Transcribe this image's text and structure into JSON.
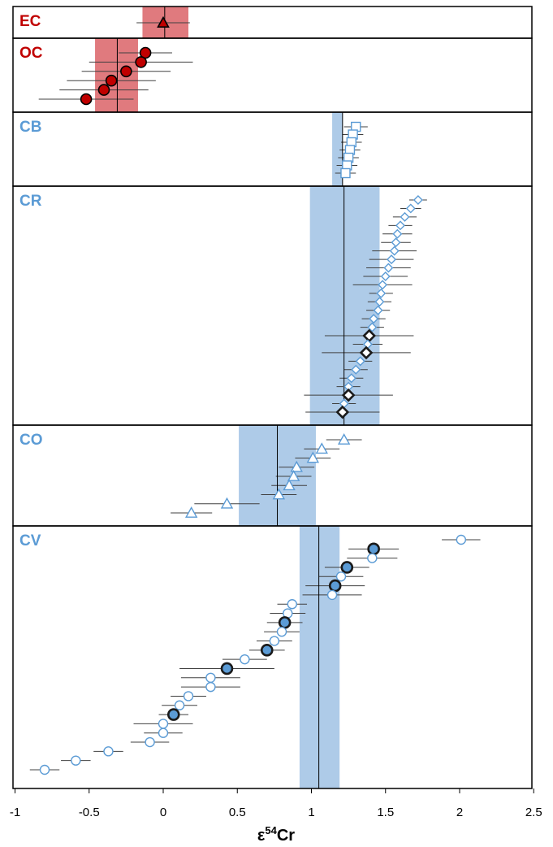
{
  "chart_data": {
    "type": "scatter",
    "xlabel": {
      "prefix": "ε",
      "sup": "54",
      "suffix": "Cr"
    },
    "xlim": [
      -1,
      2.5
    ],
    "xticks": [
      -1,
      -0.5,
      0,
      0.5,
      1,
      1.5,
      2,
      2.5
    ],
    "xtick_labels": [
      "-1",
      "-0.5",
      "0",
      "0.5",
      "1",
      "1.5",
      "2",
      "2.5"
    ],
    "grid": false,
    "colors": {
      "ordinary": "#c00000",
      "carbonaceous": "#5b9bd5",
      "band_red": "#e07a7e",
      "band_blue": "#aecbe8"
    },
    "groups": [
      {
        "label": "EC",
        "color": "#c00000",
        "mean": 0.01,
        "band": [
          -0.14,
          0.17
        ],
        "marker": "triangle",
        "fill": "#c00000",
        "points": [
          {
            "x": 0.0,
            "err": 0.18,
            "highlight": false
          }
        ]
      },
      {
        "label": "OC",
        "color": "#c00000",
        "mean": -0.31,
        "band": [
          -0.46,
          -0.17
        ],
        "marker": "circle",
        "fill": "#c00000",
        "points": [
          {
            "x": -0.12,
            "err": 0.18,
            "highlight": false
          },
          {
            "x": -0.15,
            "err": 0.35,
            "highlight": false
          },
          {
            "x": -0.25,
            "err": 0.3,
            "highlight": false
          },
          {
            "x": -0.35,
            "err": 0.3,
            "highlight": false
          },
          {
            "x": -0.4,
            "err": 0.3,
            "highlight": false
          },
          {
            "x": -0.52,
            "err": 0.32,
            "highlight": false
          }
        ]
      },
      {
        "label": "CB",
        "color": "#5b9bd5",
        "mean": 1.21,
        "band": [
          1.14,
          1.21
        ],
        "marker": "square",
        "fill": "#ffffff",
        "points": [
          {
            "x": 1.3,
            "err": 0.08,
            "highlight": false
          },
          {
            "x": 1.28,
            "err": 0.07,
            "highlight": false
          },
          {
            "x": 1.27,
            "err": 0.07,
            "highlight": false
          },
          {
            "x": 1.26,
            "err": 0.07,
            "highlight": false
          },
          {
            "x": 1.25,
            "err": 0.07,
            "highlight": false
          },
          {
            "x": 1.24,
            "err": 0.07,
            "highlight": false
          },
          {
            "x": 1.23,
            "err": 0.07,
            "highlight": false
          }
        ]
      },
      {
        "label": "CR",
        "color": "#5b9bd5",
        "mean": 1.22,
        "band": [
          0.99,
          1.46
        ],
        "marker": "diamond",
        "fill": "#ffffff",
        "points": [
          {
            "x": 1.72,
            "err": 0.06,
            "highlight": false
          },
          {
            "x": 1.67,
            "err": 0.07,
            "highlight": false
          },
          {
            "x": 1.63,
            "err": 0.08,
            "highlight": false
          },
          {
            "x": 1.6,
            "err": 0.08,
            "highlight": false
          },
          {
            "x": 1.58,
            "err": 0.1,
            "highlight": false
          },
          {
            "x": 1.57,
            "err": 0.1,
            "highlight": false
          },
          {
            "x": 1.56,
            "err": 0.15,
            "highlight": false
          },
          {
            "x": 1.54,
            "err": 0.15,
            "highlight": false
          },
          {
            "x": 1.52,
            "err": 0.15,
            "highlight": false
          },
          {
            "x": 1.5,
            "err": 0.15,
            "highlight": false
          },
          {
            "x": 1.48,
            "err": 0.2,
            "highlight": false
          },
          {
            "x": 1.47,
            "err": 0.08,
            "highlight": false
          },
          {
            "x": 1.46,
            "err": 0.08,
            "highlight": false
          },
          {
            "x": 1.45,
            "err": 0.08,
            "highlight": false
          },
          {
            "x": 1.42,
            "err": 0.08,
            "highlight": false
          },
          {
            "x": 1.41,
            "err": 0.08,
            "highlight": false
          },
          {
            "x": 1.39,
            "err": 0.3,
            "highlight": true
          },
          {
            "x": 1.38,
            "err": 0.1,
            "highlight": false
          },
          {
            "x": 1.37,
            "err": 0.3,
            "highlight": true
          },
          {
            "x": 1.33,
            "err": 0.08,
            "highlight": false
          },
          {
            "x": 1.3,
            "err": 0.08,
            "highlight": false
          },
          {
            "x": 1.27,
            "err": 0.08,
            "highlight": false
          },
          {
            "x": 1.25,
            "err": 0.08,
            "highlight": false
          },
          {
            "x": 1.25,
            "err": 0.3,
            "highlight": true
          },
          {
            "x": 1.22,
            "err": 0.08,
            "highlight": false
          },
          {
            "x": 1.21,
            "err": 0.25,
            "highlight": true
          }
        ]
      },
      {
        "label": "CO",
        "color": "#5b9bd5",
        "mean": 0.77,
        "band": [
          0.51,
          1.03
        ],
        "marker": "triangle",
        "fill": "#ffffff",
        "points": [
          {
            "x": 1.22,
            "err": 0.12,
            "highlight": false
          },
          {
            "x": 1.07,
            "err": 0.12,
            "highlight": false
          },
          {
            "x": 1.01,
            "err": 0.12,
            "highlight": false
          },
          {
            "x": 0.9,
            "err": 0.12,
            "highlight": false
          },
          {
            "x": 0.88,
            "err": 0.12,
            "highlight": false
          },
          {
            "x": 0.85,
            "err": 0.12,
            "highlight": false
          },
          {
            "x": 0.78,
            "err": 0.12,
            "highlight": false
          },
          {
            "x": 0.43,
            "err": 0.22,
            "highlight": false
          },
          {
            "x": 0.19,
            "err": 0.14,
            "highlight": false
          }
        ]
      },
      {
        "label": "CV",
        "color": "#5b9bd5",
        "mean": 1.05,
        "band": [
          0.92,
          1.19
        ],
        "marker": "circle",
        "fill": "#ffffff",
        "highlight_fill": "#5b9bd5",
        "points": [
          {
            "x": 2.01,
            "err": 0.13,
            "highlight": false
          },
          {
            "x": 1.42,
            "err": 0.17,
            "highlight": true
          },
          {
            "x": 1.41,
            "err": 0.17,
            "highlight": false
          },
          {
            "x": 1.24,
            "err": 0.15,
            "highlight": true
          },
          {
            "x": 1.2,
            "err": 0.15,
            "highlight": false
          },
          {
            "x": 1.16,
            "err": 0.2,
            "highlight": true
          },
          {
            "x": 1.14,
            "err": 0.2,
            "highlight": false
          },
          {
            "x": 0.87,
            "err": 0.1,
            "highlight": false
          },
          {
            "x": 0.84,
            "err": 0.12,
            "highlight": false
          },
          {
            "x": 0.82,
            "err": 0.12,
            "highlight": true
          },
          {
            "x": 0.8,
            "err": 0.12,
            "highlight": false
          },
          {
            "x": 0.75,
            "err": 0.12,
            "highlight": false
          },
          {
            "x": 0.7,
            "err": 0.12,
            "highlight": true
          },
          {
            "x": 0.55,
            "err": 0.15,
            "highlight": false
          },
          {
            "x": 0.43,
            "err": 0.32,
            "highlight": true
          },
          {
            "x": 0.32,
            "err": 0.2,
            "highlight": false
          },
          {
            "x": 0.32,
            "err": 0.2,
            "highlight": false
          },
          {
            "x": 0.17,
            "err": 0.12,
            "highlight": false
          },
          {
            "x": 0.11,
            "err": 0.12,
            "highlight": false
          },
          {
            "x": 0.07,
            "err": 0.1,
            "highlight": true
          },
          {
            "x": 0.0,
            "err": 0.2,
            "highlight": false
          },
          {
            "x": 0.0,
            "err": 0.13,
            "highlight": false
          },
          {
            "x": -0.09,
            "err": 0.13,
            "highlight": false
          },
          {
            "x": -0.37,
            "err": 0.1,
            "highlight": false
          },
          {
            "x": -0.59,
            "err": 0.1,
            "highlight": false
          },
          {
            "x": -0.8,
            "err": 0.1,
            "highlight": false
          }
        ]
      }
    ]
  }
}
